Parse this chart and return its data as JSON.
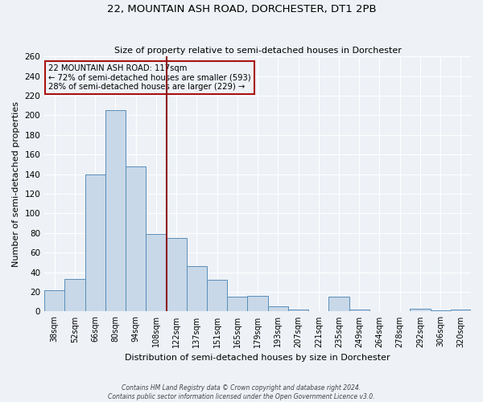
{
  "title1": "22, MOUNTAIN ASH ROAD, DORCHESTER, DT1 2PB",
  "title2": "Size of property relative to semi-detached houses in Dorchester",
  "xlabel": "Distribution of semi-detached houses by size in Dorchester",
  "ylabel": "Number of semi-detached properties",
  "footnote1": "Contains HM Land Registry data © Crown copyright and database right 2024.",
  "footnote2": "Contains public sector information licensed under the Open Government Licence v3.0.",
  "bin_labels": [
    "38sqm",
    "52sqm",
    "66sqm",
    "80sqm",
    "94sqm",
    "108sqm",
    "122sqm",
    "137sqm",
    "151sqm",
    "165sqm",
    "179sqm",
    "193sqm",
    "207sqm",
    "221sqm",
    "235sqm",
    "249sqm",
    "264sqm",
    "278sqm",
    "292sqm",
    "306sqm",
    "320sqm"
  ],
  "bar_heights": [
    22,
    33,
    140,
    205,
    148,
    79,
    75,
    46,
    32,
    15,
    16,
    5,
    2,
    0,
    15,
    2,
    0,
    0,
    3,
    1,
    2
  ],
  "bar_color": "#c8d8e8",
  "bar_edgecolor": "#5b8db8",
  "property_bin": 6,
  "vline_color": "#8b1a1a",
  "annotation_title": "22 MOUNTAIN ASH ROAD: 117sqm",
  "annotation_line1": "← 72% of semi-detached houses are smaller (593)",
  "annotation_line2": "28% of semi-detached houses are larger (229) →",
  "annotation_box_edgecolor": "#aa1111",
  "ylim": [
    0,
    260
  ],
  "yticks": [
    0,
    20,
    40,
    60,
    80,
    100,
    120,
    140,
    160,
    180,
    200,
    220,
    240,
    260
  ],
  "bg_color": "#eef2f7",
  "grid_color": "#ffffff"
}
